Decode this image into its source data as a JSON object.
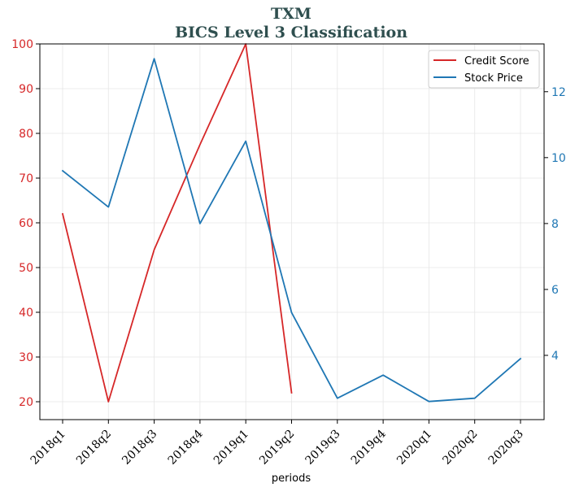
{
  "chart_data": {
    "type": "line",
    "title": "TXM",
    "subtitle": "BICS Level 3 Classification",
    "xlabel": "periods",
    "categories": [
      "2018q1",
      "2018q2",
      "2018q3",
      "2018q4",
      "2019q1",
      "2019q2",
      "2019q3",
      "2019q4",
      "2020q1",
      "2020q2",
      "2020q3"
    ],
    "series": [
      {
        "name": "Credit Score",
        "axis": "left",
        "color": "#d62728",
        "values": [
          62,
          20,
          54,
          77.5,
          100,
          22,
          null,
          null,
          null,
          null,
          null
        ]
      },
      {
        "name": "Stock Price",
        "axis": "right",
        "color": "#1f77b4",
        "values": [
          9.6,
          8.5,
          13.0,
          8.0,
          10.5,
          5.3,
          2.7,
          3.4,
          2.6,
          2.7,
          3.9
        ]
      }
    ],
    "y_left": {
      "ylim": [
        16,
        100
      ],
      "ticks": [
        20,
        30,
        40,
        50,
        60,
        70,
        80,
        90,
        100
      ],
      "color": "#d62728"
    },
    "y_right": {
      "ylim": [
        2.05,
        13.45
      ],
      "ticks": [
        4,
        6,
        8,
        10,
        12
      ],
      "color": "#1f77b4"
    },
    "grid": true,
    "legend": {
      "placement": "top-right",
      "entries": [
        "Credit Score",
        "Stock Price"
      ]
    }
  }
}
